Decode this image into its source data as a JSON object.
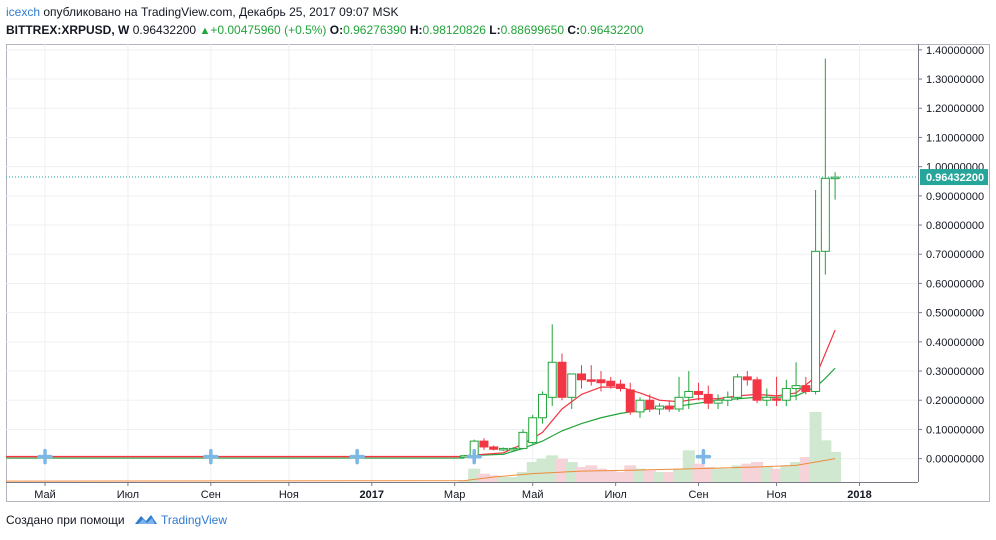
{
  "header": {
    "author": "icexch",
    "published": " опубликовано на TradingView.com, Декабрь 25, 2017 09:07 MSK",
    "symbol": "BITTREX:XRPUSD, W",
    "price": "0.96432200",
    "change": "+0.00475960 (+0.5%)",
    "o_label": "O:",
    "o_value": "0.96276390",
    "h_label": "H:",
    "h_value": "0.98120826",
    "l_label": "L:",
    "l_value": "0.88699650",
    "c_label": "C:",
    "c_value": "0.96432200"
  },
  "footer": {
    "created_with": "Создано при помощи",
    "brand": "TradingView"
  },
  "colors": {
    "up": "#21a43a",
    "down": "#f23645",
    "ema_fast": "#f23645",
    "ema_slow": "#21a43a",
    "vol_up": "#cfe8cf",
    "vol_down": "#f5d3d8",
    "vol_ma": "#ef8b3b",
    "last_price_line": "#26a69a"
  },
  "chart_data": {
    "type": "candlestick",
    "last_price_label": "0.96432200",
    "ylim": [
      -0.08,
      1.42
    ],
    "y_ticks": [
      "1.40000000",
      "1.30000000",
      "1.20000000",
      "1.10000000",
      "1.00000000",
      "0.90000000",
      "0.80000000",
      "0.70000000",
      "0.60000000",
      "0.50000000",
      "0.40000000",
      "0.30000000",
      "0.20000000",
      "0.10000000",
      "0.00000000"
    ],
    "x_ticks": [
      {
        "label": "Май",
        "x": 2016.33,
        "bold": false
      },
      {
        "label": "Июл",
        "x": 2016.5,
        "bold": false
      },
      {
        "label": "Сен",
        "x": 2016.67,
        "bold": false
      },
      {
        "label": "Ноя",
        "x": 2016.83,
        "bold": false
      },
      {
        "label": "2017",
        "x": 2017.0,
        "bold": true
      },
      {
        "label": "Мар",
        "x": 2017.17,
        "bold": false
      },
      {
        "label": "Май",
        "x": 2017.33,
        "bold": false
      },
      {
        "label": "Июл",
        "x": 2017.5,
        "bold": false
      },
      {
        "label": "Сен",
        "x": 2017.67,
        "bold": false
      },
      {
        "label": "Ноя",
        "x": 2017.83,
        "bold": false
      },
      {
        "label": "2018",
        "x": 2018.0,
        "bold": true
      }
    ],
    "xlim": [
      2016.25,
      2018.12
    ],
    "flat_period": {
      "from": 2016.25,
      "to": 2017.19,
      "price": 0.007
    },
    "candles": [
      {
        "x": 2017.19,
        "o": 0.009,
        "h": 0.012,
        "l": 0.006,
        "c": 0.01
      },
      {
        "x": 2017.21,
        "o": 0.01,
        "h": 0.065,
        "l": 0.009,
        "c": 0.06
      },
      {
        "x": 2017.23,
        "o": 0.06,
        "h": 0.07,
        "l": 0.03,
        "c": 0.04
      },
      {
        "x": 2017.25,
        "o": 0.04,
        "h": 0.045,
        "l": 0.028,
        "c": 0.032
      },
      {
        "x": 2017.27,
        "o": 0.033,
        "h": 0.038,
        "l": 0.026,
        "c": 0.035
      },
      {
        "x": 2017.29,
        "o": 0.035,
        "h": 0.04,
        "l": 0.03,
        "c": 0.035
      },
      {
        "x": 2017.31,
        "o": 0.035,
        "h": 0.1,
        "l": 0.032,
        "c": 0.09
      },
      {
        "x": 2017.33,
        "o": 0.055,
        "h": 0.15,
        "l": 0.05,
        "c": 0.14
      },
      {
        "x": 2017.35,
        "o": 0.14,
        "h": 0.23,
        "l": 0.12,
        "c": 0.22
      },
      {
        "x": 2017.37,
        "o": 0.21,
        "h": 0.46,
        "l": 0.18,
        "c": 0.33
      },
      {
        "x": 2017.39,
        "o": 0.33,
        "h": 0.36,
        "l": 0.2,
        "c": 0.21
      },
      {
        "x": 2017.41,
        "o": 0.21,
        "h": 0.29,
        "l": 0.17,
        "c": 0.29
      },
      {
        "x": 2017.43,
        "o": 0.29,
        "h": 0.32,
        "l": 0.24,
        "c": 0.27
      },
      {
        "x": 2017.45,
        "o": 0.27,
        "h": 0.32,
        "l": 0.25,
        "c": 0.265
      },
      {
        "x": 2017.47,
        "o": 0.27,
        "h": 0.3,
        "l": 0.23,
        "c": 0.26
      },
      {
        "x": 2017.49,
        "o": 0.265,
        "h": 0.28,
        "l": 0.24,
        "c": 0.25
      },
      {
        "x": 2017.51,
        "o": 0.255,
        "h": 0.27,
        "l": 0.23,
        "c": 0.24
      },
      {
        "x": 2017.53,
        "o": 0.235,
        "h": 0.26,
        "l": 0.15,
        "c": 0.16
      },
      {
        "x": 2017.55,
        "o": 0.16,
        "h": 0.21,
        "l": 0.14,
        "c": 0.2
      },
      {
        "x": 2017.57,
        "o": 0.2,
        "h": 0.22,
        "l": 0.16,
        "c": 0.17
      },
      {
        "x": 2017.59,
        "o": 0.17,
        "h": 0.19,
        "l": 0.15,
        "c": 0.18
      },
      {
        "x": 2017.61,
        "o": 0.18,
        "h": 0.2,
        "l": 0.16,
        "c": 0.17
      },
      {
        "x": 2017.63,
        "o": 0.17,
        "h": 0.28,
        "l": 0.16,
        "c": 0.21
      },
      {
        "x": 2017.65,
        "o": 0.21,
        "h": 0.3,
        "l": 0.17,
        "c": 0.23
      },
      {
        "x": 2017.67,
        "o": 0.23,
        "h": 0.26,
        "l": 0.2,
        "c": 0.22
      },
      {
        "x": 2017.69,
        "o": 0.22,
        "h": 0.25,
        "l": 0.17,
        "c": 0.19
      },
      {
        "x": 2017.71,
        "o": 0.19,
        "h": 0.22,
        "l": 0.17,
        "c": 0.2
      },
      {
        "x": 2017.73,
        "o": 0.2,
        "h": 0.23,
        "l": 0.18,
        "c": 0.21
      },
      {
        "x": 2017.75,
        "o": 0.21,
        "h": 0.29,
        "l": 0.2,
        "c": 0.28
      },
      {
        "x": 2017.77,
        "o": 0.28,
        "h": 0.3,
        "l": 0.25,
        "c": 0.27
      },
      {
        "x": 2017.79,
        "o": 0.27,
        "h": 0.28,
        "l": 0.19,
        "c": 0.2
      },
      {
        "x": 2017.81,
        "o": 0.2,
        "h": 0.24,
        "l": 0.18,
        "c": 0.21
      },
      {
        "x": 2017.83,
        "o": 0.205,
        "h": 0.28,
        "l": 0.18,
        "c": 0.2
      },
      {
        "x": 2017.85,
        "o": 0.2,
        "h": 0.27,
        "l": 0.18,
        "c": 0.24
      },
      {
        "x": 2017.87,
        "o": 0.24,
        "h": 0.33,
        "l": 0.2,
        "c": 0.25
      },
      {
        "x": 2017.89,
        "o": 0.25,
        "h": 0.28,
        "l": 0.22,
        "c": 0.23
      },
      {
        "x": 2017.91,
        "o": 0.23,
        "h": 0.92,
        "l": 0.22,
        "c": 0.71
      },
      {
        "x": 2017.93,
        "o": 0.71,
        "h": 1.37,
        "l": 0.63,
        "c": 0.96
      },
      {
        "x": 2017.95,
        "o": 0.963,
        "h": 0.981,
        "l": 0.887,
        "c": 0.964
      }
    ],
    "ema_fast": [
      [
        2017.19,
        0.01
      ],
      [
        2017.27,
        0.02
      ],
      [
        2017.31,
        0.05
      ],
      [
        2017.35,
        0.09
      ],
      [
        2017.39,
        0.17
      ],
      [
        2017.43,
        0.22
      ],
      [
        2017.47,
        0.245
      ],
      [
        2017.51,
        0.245
      ],
      [
        2017.55,
        0.225
      ],
      [
        2017.59,
        0.2
      ],
      [
        2017.63,
        0.195
      ],
      [
        2017.67,
        0.205
      ],
      [
        2017.71,
        0.205
      ],
      [
        2017.75,
        0.215
      ],
      [
        2017.79,
        0.22
      ],
      [
        2017.83,
        0.215
      ],
      [
        2017.87,
        0.225
      ],
      [
        2017.91,
        0.28
      ],
      [
        2017.93,
        0.36
      ],
      [
        2017.95,
        0.44
      ]
    ],
    "ema_slow": [
      [
        2017.19,
        0.01
      ],
      [
        2017.27,
        0.015
      ],
      [
        2017.31,
        0.035
      ],
      [
        2017.35,
        0.06
      ],
      [
        2017.39,
        0.095
      ],
      [
        2017.43,
        0.12
      ],
      [
        2017.47,
        0.14
      ],
      [
        2017.51,
        0.155
      ],
      [
        2017.55,
        0.165
      ],
      [
        2017.59,
        0.175
      ],
      [
        2017.63,
        0.18
      ],
      [
        2017.67,
        0.19
      ],
      [
        2017.71,
        0.2
      ],
      [
        2017.75,
        0.205
      ],
      [
        2017.79,
        0.21
      ],
      [
        2017.83,
        0.21
      ],
      [
        2017.87,
        0.215
      ],
      [
        2017.91,
        0.245
      ],
      [
        2017.93,
        0.275
      ],
      [
        2017.95,
        0.31
      ]
    ],
    "volume": [
      0.01,
      0.08,
      0.05,
      0.04,
      0.03,
      0.03,
      0.06,
      0.12,
      0.14,
      0.16,
      0.14,
      0.12,
      0.09,
      0.1,
      0.08,
      0.07,
      0.06,
      0.1,
      0.08,
      0.07,
      0.06,
      0.06,
      0.08,
      0.19,
      0.11,
      0.09,
      0.08,
      0.08,
      0.1,
      0.11,
      0.12,
      0.09,
      0.08,
      0.1,
      0.12,
      0.15,
      0.42,
      0.25,
      0.18
    ],
    "volume_ma": [
      [
        2016.25,
        0.005
      ],
      [
        2017.19,
        0.008
      ],
      [
        2017.25,
        0.03
      ],
      [
        2017.33,
        0.05
      ],
      [
        2017.43,
        0.065
      ],
      [
        2017.55,
        0.072
      ],
      [
        2017.67,
        0.08
      ],
      [
        2017.79,
        0.09
      ],
      [
        2017.87,
        0.1
      ],
      [
        2017.93,
        0.13
      ],
      [
        2017.95,
        0.14
      ]
    ],
    "events": [
      2016.33,
      2016.67,
      2016.97,
      2017.21,
      2017.68
    ]
  }
}
